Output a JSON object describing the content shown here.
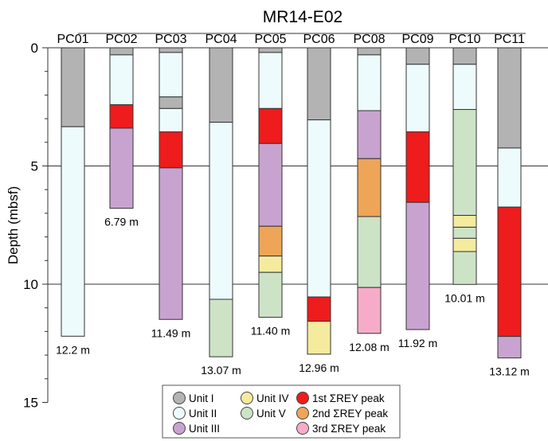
{
  "chart_data": {
    "type": "stratigraphic-column",
    "title": "MR14-E02",
    "ylabel": "Depth (mbsf)",
    "ylim": [
      0,
      15
    ],
    "yticks": [
      "0",
      "5",
      "10",
      "15"
    ],
    "grid": "horizontal at 5 and 10",
    "legend_placement": "bottom-center",
    "colors": {
      "unit1": "#b3b3b3",
      "unit2": "#eefbfd",
      "unit3": "#c9a3d0",
      "unit4": "#f5eb9e",
      "unit5": "#cde3c6",
      "peak1": "#ee1c1c",
      "peak2": "#eea558",
      "peak3": "#f6acc8"
    },
    "legend": [
      {
        "key": "unit1",
        "label": "Unit I"
      },
      {
        "key": "unit2",
        "label": "Unit II"
      },
      {
        "key": "unit3",
        "label": "Unit III"
      },
      {
        "key": "unit4",
        "label": "Unit IV"
      },
      {
        "key": "unit5",
        "label": "Unit V"
      },
      {
        "key": "peak1",
        "label": "1st ΣREY peak"
      },
      {
        "key": "peak2",
        "label": "2nd ΣREY peak"
      },
      {
        "key": "peak3",
        "label": "3rd ΣREY peak"
      }
    ],
    "cores": [
      {
        "name": "PC01",
        "length_label": "12.2 m",
        "segments": [
          [
            "unit1",
            0,
            3.34
          ],
          [
            "unit2",
            3.34,
            12.2
          ]
        ]
      },
      {
        "name": "PC02",
        "length_label": "6.79 m",
        "segments": [
          [
            "unit1",
            0,
            0.3
          ],
          [
            "unit2",
            0.3,
            2.41
          ],
          [
            "peak1",
            2.41,
            3.4
          ],
          [
            "unit3",
            3.4,
            6.79
          ]
        ]
      },
      {
        "name": "PC03",
        "length_label": "11.49 m",
        "segments": [
          [
            "unit1",
            0,
            0.2
          ],
          [
            "unit2",
            0.2,
            2.08
          ],
          [
            "unit1",
            2.08,
            2.57
          ],
          [
            "unit2",
            2.57,
            3.56
          ],
          [
            "peak1",
            3.56,
            5.08
          ],
          [
            "unit3",
            5.08,
            11.49
          ]
        ]
      },
      {
        "name": "PC04",
        "length_label": "13.07 m",
        "segments": [
          [
            "unit1",
            0,
            3.15
          ],
          [
            "unit2",
            3.15,
            10.64
          ],
          [
            "unit5",
            10.64,
            13.07
          ]
        ]
      },
      {
        "name": "PC05",
        "length_label": "11.40 m",
        "segments": [
          [
            "unit1",
            0,
            0.2
          ],
          [
            "unit2",
            0.2,
            2.57
          ],
          [
            "peak1",
            2.57,
            4.05
          ],
          [
            "unit3",
            4.05,
            7.55
          ],
          [
            "peak2",
            7.55,
            8.81
          ],
          [
            "unit4",
            8.81,
            9.5
          ],
          [
            "unit5",
            9.5,
            11.4
          ]
        ]
      },
      {
        "name": "PC06",
        "length_label": "12.96 m",
        "segments": [
          [
            "unit1",
            0,
            3.05
          ],
          [
            "unit2",
            3.05,
            10.54
          ],
          [
            "peak1",
            10.54,
            11.57
          ],
          [
            "unit4",
            11.57,
            12.96
          ]
        ]
      },
      {
        "name": "PC08",
        "length_label": "12.08 m",
        "segments": [
          [
            "unit1",
            0,
            0.3
          ],
          [
            "unit2",
            0.3,
            2.66
          ],
          [
            "unit3",
            2.66,
            4.69
          ],
          [
            "peak2",
            4.69,
            7.14
          ],
          [
            "unit5",
            7.14,
            10.14
          ],
          [
            "peak3",
            10.14,
            12.08
          ]
        ]
      },
      {
        "name": "PC09",
        "length_label": "11.92 m",
        "segments": [
          [
            "unit1",
            0,
            0.7
          ],
          [
            "unit2",
            0.7,
            3.56
          ],
          [
            "peak1",
            3.56,
            6.54
          ],
          [
            "unit3",
            6.54,
            11.92
          ]
        ]
      },
      {
        "name": "PC10",
        "length_label": "10.01 m",
        "segments": [
          [
            "unit1",
            0,
            0.7
          ],
          [
            "unit2",
            0.7,
            2.61
          ],
          [
            "unit5",
            2.61,
            7.09
          ],
          [
            "unit4",
            7.09,
            7.59
          ],
          [
            "unit5",
            7.59,
            8.06
          ],
          [
            "unit4",
            8.06,
            8.62
          ],
          [
            "unit5",
            8.62,
            10.01
          ]
        ]
      },
      {
        "name": "PC11",
        "length_label": "13.12 m",
        "segments": [
          [
            "unit1",
            0,
            4.24
          ],
          [
            "unit2",
            4.24,
            6.74
          ],
          [
            "peak1",
            6.74,
            12.21
          ],
          [
            "unit3",
            12.21,
            13.12
          ]
        ]
      }
    ]
  }
}
